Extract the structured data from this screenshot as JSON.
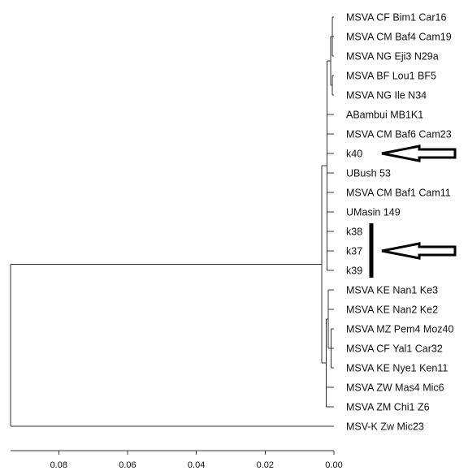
{
  "tree": {
    "leaves": [
      {
        "id": "l1",
        "label": "MSVA CF Bim1 Car16"
      },
      {
        "id": "l2",
        "label": "MSVA CM Baf4 Cam19"
      },
      {
        "id": "l3",
        "label": "MSVA NG Eji3 N29a"
      },
      {
        "id": "l4",
        "label": "MSVA BF Lou1 BF5"
      },
      {
        "id": "l5",
        "label": "MSVA NG Ile N34"
      },
      {
        "id": "l6",
        "label": "ABambui MB1K1"
      },
      {
        "id": "l7",
        "label": "MSVA CM Baf6 Cam23"
      },
      {
        "id": "l8",
        "label": "k40"
      },
      {
        "id": "l9",
        "label": "UBush 53"
      },
      {
        "id": "l10",
        "label": "MSVA CM Baf1 Cam11"
      },
      {
        "id": "l11",
        "label": "UMasin 149"
      },
      {
        "id": "l12",
        "label": "k38"
      },
      {
        "id": "l13",
        "label": "k37"
      },
      {
        "id": "l14",
        "label": "k39"
      },
      {
        "id": "l15",
        "label": "MSVA KE Nan1 Ke3"
      },
      {
        "id": "l16",
        "label": "MSVA KE Nan2 Ke2"
      },
      {
        "id": "l17",
        "label": "MSVA MZ Pem4 Moz40"
      },
      {
        "id": "l18",
        "label": "MSVA CF Yal1 Car32"
      },
      {
        "id": "l19",
        "label": "MSVA KE Nye1 Ken11"
      },
      {
        "id": "l20",
        "label": "MSVA ZW Mas4 Mic6"
      },
      {
        "id": "l21",
        "label": "MSVA ZM Chi1 Z6"
      },
      {
        "id": "l22",
        "label": "MSV-K Zw Mic23"
      }
    ],
    "tree_structure": {
      "h": 0.094,
      "c": [
        {
          "h": 0.0035,
          "c": [
            {
              "h": 0.002,
              "c": [
                {
                  "h": 0.001,
                  "c": [
                    {
                      "h": 0.0005,
                      "c": [
                        "l1",
                        "l2",
                        "l3"
                      ]
                    },
                    {
                      "h": 0.0005,
                      "c": [
                        "l4",
                        "l5"
                      ]
                    }
                  ]
                },
                "l6",
                "l7",
                "l8",
                "l9",
                "l10",
                "l11",
                "l12",
                "l13",
                "l14"
              ]
            },
            {
              "h": 0.0022,
              "c": [
                {
                  "h": 0.0016,
                  "c": [
                    "l15",
                    "l16",
                    {
                      "h": 0.0008,
                      "c": [
                        "l17",
                        "l18",
                        "l19"
                      ]
                    }
                  ]
                },
                "l20",
                "l21"
              ]
            }
          ]
        },
        "l22"
      ]
    },
    "axis": {
      "min": 0,
      "max": 0.094,
      "ticks": [
        {
          "value": 0.08,
          "label": "0.08"
        },
        {
          "value": 0.06,
          "label": "0.06"
        },
        {
          "value": 0.04,
          "label": "0.04"
        },
        {
          "value": 0.02,
          "label": "0.02"
        },
        {
          "value": 0.0,
          "label": "0.00"
        }
      ]
    },
    "annotations": [
      {
        "id": "arrow-k40",
        "type": "arrow",
        "target": "l8"
      },
      {
        "id": "bracket-k38-k39",
        "type": "bracket",
        "from": "l12",
        "to": "l14"
      },
      {
        "id": "arrow-k37",
        "type": "arrow",
        "target": "l13"
      }
    ]
  }
}
